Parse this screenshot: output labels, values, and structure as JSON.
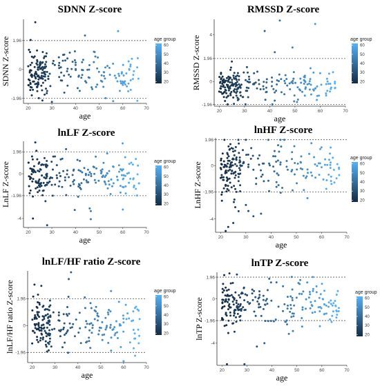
{
  "figure": {
    "colors": {
      "dark": "#132b43",
      "light": "#56b1f7",
      "refline": "#555555"
    }
  },
  "chart_data": [
    {
      "type": "scatter",
      "title": "SDNN Z-score",
      "ylabel": "SDNN Z-score",
      "xlabel": "age",
      "xlim": [
        18,
        70
      ],
      "ylim": [
        -2.3,
        3.4
      ],
      "xticks": [
        20,
        30,
        40,
        50,
        60,
        70
      ],
      "yticks": [
        {
          "v": -1.96,
          "t": "-1.96"
        },
        {
          "v": 0,
          "t": "0"
        },
        {
          "v": 1.96,
          "t": "1.96"
        }
      ],
      "reflines": [
        1.96,
        -1.96
      ],
      "legend": {
        "title": "age group",
        "ticks": [
          20,
          30,
          40,
          50,
          60
        ],
        "position": "right"
      },
      "seed": 11,
      "center": -0.3,
      "spread": 0.75,
      "outliers": [
        [
          23,
          3.2
        ],
        [
          58,
          2.6
        ],
        [
          44,
          2.3
        ],
        [
          26,
          -2.1
        ],
        [
          30,
          -2.2
        ],
        [
          21,
          2.0
        ]
      ]
    },
    {
      "type": "scatter",
      "title": "RMSSD Z-score",
      "ylabel": "RMSSD Z-score",
      "xlabel": "age",
      "xlim": [
        18,
        70
      ],
      "ylim": [
        -2.1,
        5.3
      ],
      "xticks": [
        20,
        30,
        40,
        50,
        60,
        70
      ],
      "yticks": [
        {
          "v": -1.96,
          "t": "-1.96"
        },
        {
          "v": 0,
          "t": "0"
        },
        {
          "v": 1.96,
          "t": "1.96"
        },
        {
          "v": 4,
          "t": "4"
        }
      ],
      "reflines": [
        1.96,
        -1.96
      ],
      "legend": {
        "title": "age group",
        "ticks": [
          20,
          30,
          40,
          50,
          60
        ],
        "position": "right"
      },
      "seed": 23,
      "center": -0.4,
      "spread": 0.65,
      "outliers": [
        [
          44,
          5.2
        ],
        [
          58,
          4.9
        ],
        [
          38,
          4.3
        ],
        [
          49,
          2.9
        ],
        [
          42,
          2.5
        ],
        [
          25,
          1.7
        ]
      ]
    },
    {
      "type": "scatter",
      "title": "lnLF Z-score",
      "ylabel": "LnLF Z-score",
      "xlabel": "age",
      "xlim": [
        18,
        70
      ],
      "ylim": [
        -4.8,
        2.9
      ],
      "xticks": [
        20,
        30,
        40,
        50,
        60,
        70
      ],
      "yticks": [
        {
          "v": -4,
          "t": "-4"
        },
        {
          "v": -1.96,
          "t": "-1.96"
        },
        {
          "v": 0,
          "t": "0"
        },
        {
          "v": 1.96,
          "t": "1.96"
        }
      ],
      "reflines": [
        1.96,
        -1.96
      ],
      "legend": {
        "title": "age group",
        "ticks": [
          20,
          30,
          40,
          50,
          60
        ],
        "position": "right"
      },
      "seed": 37,
      "center": -0.3,
      "spread": 0.95,
      "outliers": [
        [
          23,
          2.8
        ],
        [
          36,
          2.2
        ],
        [
          28,
          -4.6
        ],
        [
          22,
          -4.0
        ],
        [
          46,
          -3.1
        ],
        [
          60,
          -3.2
        ]
      ]
    },
    {
      "type": "scatter",
      "title": "lnHF Z-score",
      "ylabel": "LnHF Z-score",
      "xlabel": "age",
      "xlim": [
        18,
        70
      ],
      "ylim": [
        -5.0,
        2.1
      ],
      "xticks": [
        20,
        30,
        40,
        50,
        60,
        70
      ],
      "yticks": [
        {
          "v": -4,
          "t": "-4"
        },
        {
          "v": -1.96,
          "t": "-1.96"
        },
        {
          "v": 0,
          "t": "0"
        },
        {
          "v": 1.96,
          "t": "1.96"
        }
      ],
      "reflines": [
        1.96,
        -1.96
      ],
      "legend": {
        "title": "age group",
        "ticks": [
          20,
          30,
          40,
          50,
          60
        ],
        "position": "right"
      },
      "seed": 53,
      "center": -0.2,
      "spread": 1.0,
      "outliers": [
        [
          22,
          -4.9
        ],
        [
          23,
          -4.6
        ],
        [
          25,
          -4.3
        ],
        [
          31,
          -3.4
        ],
        [
          33,
          -3.8
        ],
        [
          36,
          -3.6
        ]
      ]
    },
    {
      "type": "scatter",
      "title": "lnLF/HF ratio Z-score",
      "ylabel": "lnLF/HF ratio Z-score",
      "xlabel": "age",
      "xlim": [
        18,
        70
      ],
      "ylim": [
        -2.7,
        4.0
      ],
      "xticks": [
        20,
        30,
        40,
        50,
        60,
        70
      ],
      "yticks": [
        {
          "v": -1.96,
          "t": "-1.96"
        },
        {
          "v": 0,
          "t": "0"
        },
        {
          "v": 1.96,
          "t": "1.96"
        }
      ],
      "reflines": [
        1.96,
        -1.96
      ],
      "legend": {
        "title": "age group",
        "ticks": [
          20,
          30,
          40,
          50,
          60
        ],
        "position": "right"
      },
      "seed": 71,
      "center": 0.0,
      "spread": 0.9,
      "outliers": [
        [
          37,
          3.9
        ],
        [
          36,
          3.4
        ],
        [
          21,
          3.0
        ],
        [
          24,
          2.9
        ],
        [
          60,
          -2.6
        ],
        [
          65,
          -2.2
        ]
      ]
    },
    {
      "type": "scatter",
      "title": "lnTP Z-score",
      "ylabel": "lnTP Z-score",
      "xlabel": "age",
      "xlim": [
        18,
        70
      ],
      "ylim": [
        -6.0,
        2.4
      ],
      "xticks": [
        20,
        30,
        40,
        50,
        60,
        70
      ],
      "yticks": [
        {
          "v": -4,
          "t": "-4"
        },
        {
          "v": -1.96,
          "t": "-1.96"
        },
        {
          "v": 0,
          "t": "0"
        },
        {
          "v": 1.96,
          "t": "1.96"
        }
      ],
      "reflines": [
        1.96,
        -1.96
      ],
      "legend": {
        "title": "age group",
        "ticks": [
          20,
          30,
          40,
          50,
          60
        ],
        "position": "right"
      },
      "seed": 89,
      "center": -0.5,
      "spread": 1.0,
      "outliers": [
        [
          22,
          -5.9
        ],
        [
          29,
          -5.9
        ],
        [
          23,
          2.3
        ],
        [
          26,
          2.2
        ],
        [
          37,
          -4.0
        ],
        [
          34,
          -4.3
        ]
      ]
    }
  ]
}
